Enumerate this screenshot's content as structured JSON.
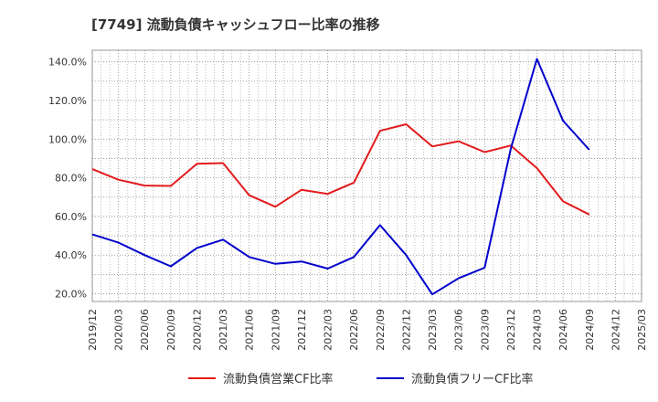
{
  "chart_data": {
    "type": "line",
    "title": "[7749]  流動負債キャッシュフロー比率の推移",
    "x": [
      "2019/12",
      "2020/03",
      "2020/06",
      "2020/09",
      "2020/12",
      "2021/03",
      "2021/06",
      "2021/09",
      "2021/12",
      "2022/03",
      "2022/06",
      "2022/09",
      "2022/12",
      "2023/03",
      "2023/06",
      "2023/09",
      "2023/12",
      "2024/03",
      "2024/06",
      "2024/09",
      "2024/12",
      "2025/03"
    ],
    "ylim": [
      16,
      146
    ],
    "yticks": [
      20,
      40,
      60,
      80,
      100,
      120,
      140
    ],
    "ytick_labels": [
      "20.0%",
      "40.0%",
      "60.0%",
      "80.0%",
      "100.0%",
      "120.0%",
      "140.0%"
    ],
    "grid": true,
    "legend_position": "bottom",
    "series": [
      {
        "name": "流動負債営業CF比率",
        "color": "#e31a1c",
        "values": [
          84.5,
          79,
          76,
          75.8,
          87.3,
          87.6,
          71,
          65,
          73.8,
          71.7,
          77.5,
          104.3,
          107.7,
          96.2,
          98.9,
          93.3,
          96.7,
          85,
          67.8,
          61,
          null,
          null
        ]
      },
      {
        "name": "流動負債フリーCF比率",
        "color": "#0000cc",
        "values": [
          50.7,
          46.5,
          40,
          34.2,
          43.7,
          48,
          39,
          35.5,
          36.7,
          33,
          39,
          55.5,
          40,
          19.7,
          28,
          33.5,
          95,
          141.5,
          109.5,
          94.5,
          null,
          null
        ]
      }
    ]
  }
}
